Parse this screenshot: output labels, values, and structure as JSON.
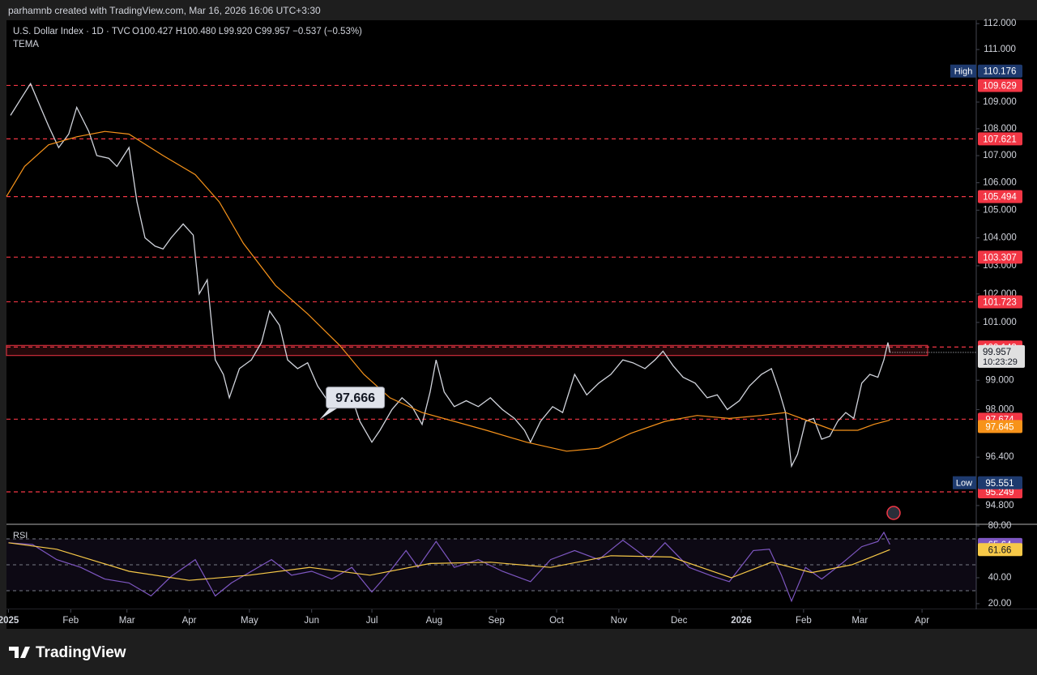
{
  "header": {
    "attribution": "parhamnb created with TradingView.com, Mar 16, 2026 16:06 UTC+3:30",
    "brand": "TradingView"
  },
  "chart_data": [
    {
      "type": "line",
      "title": "U.S. Dollar Index · 1D · TVC",
      "ohlc": "O100.427 H100.480 L99.920 C99.957 −0.537 (−0.53%)",
      "log_scale": true,
      "xlim": [
        -1,
        482
      ],
      "ylim": [
        94.24,
        112.13
      ],
      "yticks": [
        {
          "value": 112,
          "label": "112.000"
        },
        {
          "value": 111,
          "label": "111.000"
        },
        {
          "value": 109,
          "label": "109.000"
        },
        {
          "value": 108,
          "label": "108.000"
        },
        {
          "value": 107,
          "label": "107.000"
        },
        {
          "value": 106,
          "label": "106.000"
        },
        {
          "value": 105,
          "label": "105.000"
        },
        {
          "value": 104,
          "label": "104.000"
        },
        {
          "value": 103,
          "label": "103.000"
        },
        {
          "value": 102,
          "label": "102.000"
        },
        {
          "value": 101,
          "label": "101.000"
        },
        {
          "value": 99,
          "label": "99.000"
        },
        {
          "value": 98,
          "label": "98.000"
        },
        {
          "value": 96.4,
          "label": "96.400"
        },
        {
          "value": 94.8,
          "label": "94.800"
        }
      ],
      "series": [
        {
          "color": "#d1d4dc",
          "x": [
            1,
            6,
            11,
            16,
            20,
            25,
            30,
            34,
            40,
            44,
            50,
            54,
            60,
            64,
            68,
            73,
            77,
            81,
            87,
            92,
            95,
            99,
            103,
            107,
            110,
            115,
            121,
            126,
            130,
            135,
            139,
            144,
            149,
            154,
            159,
            165,
            171,
            175,
            181,
            185,
            191,
            196,
            201,
            206,
            210,
            213,
            217,
            222,
            228,
            234,
            240,
            246,
            252,
            257,
            260,
            265,
            271,
            276,
            282,
            288,
            294,
            300,
            306,
            311,
            317,
            322,
            326,
            331,
            336,
            342,
            348,
            353,
            358,
            364,
            369,
            375,
            380,
            384,
            387,
            390,
            393,
            397,
            401,
            405,
            409,
            413,
            417,
            421,
            425,
            429,
            433,
            436,
            438,
            439
          ],
          "values": [
            108.5,
            109.1,
            109.7,
            108.8,
            108.1,
            107.3,
            107.8,
            108.8,
            107.9,
            107.0,
            106.9,
            106.6,
            107.3,
            105.3,
            104.0,
            103.7,
            103.6,
            104.0,
            104.5,
            104.1,
            102.0,
            102.5,
            99.7,
            99.2,
            98.4,
            99.4,
            99.7,
            100.3,
            101.4,
            100.9,
            99.7,
            99.4,
            99.6,
            98.8,
            98.3,
            98.5,
            98.4,
            97.6,
            96.9,
            97.3,
            98.0,
            98.4,
            98.1,
            97.5,
            98.6,
            99.7,
            98.6,
            98.1,
            98.3,
            98.1,
            98.4,
            98.0,
            97.7,
            97.3,
            96.9,
            97.6,
            98.1,
            97.9,
            99.2,
            98.5,
            98.9,
            99.2,
            99.7,
            99.6,
            99.4,
            99.7,
            100.0,
            99.5,
            99.1,
            98.9,
            98.4,
            98.5,
            98.0,
            98.3,
            98.8,
            99.2,
            99.4,
            98.6,
            97.9,
            96.1,
            96.5,
            97.6,
            97.7,
            97.0,
            97.1,
            97.6,
            97.9,
            97.7,
            98.9,
            99.2,
            99.1,
            99.7,
            100.3,
            99.957
          ]
        },
        {
          "name": "TEMA",
          "color": "#f7931a",
          "x": [
            -1,
            8,
            20,
            34,
            48,
            60,
            77,
            93,
            105,
            117,
            133,
            149,
            165,
            177,
            190,
            206,
            222,
            238,
            258,
            278,
            294,
            310,
            327,
            343,
            359,
            375,
            387,
            399,
            411,
            423,
            431,
            439
          ],
          "values": [
            105.5,
            106.6,
            107.4,
            107.7,
            107.9,
            107.8,
            107.0,
            106.3,
            105.3,
            103.8,
            102.3,
            101.3,
            100.2,
            99.2,
            98.4,
            97.9,
            97.6,
            97.3,
            96.9,
            96.6,
            96.7,
            97.2,
            97.6,
            97.8,
            97.7,
            97.8,
            97.9,
            97.6,
            97.3,
            97.3,
            97.5,
            97.645
          ]
        }
      ],
      "levels": [
        109.629,
        107.621,
        105.494,
        103.307,
        101.723,
        100.143,
        97.674,
        95.249
      ],
      "level_color": "#f23645",
      "zone": [
        99.85,
        100.2
      ],
      "high": {
        "label": "High",
        "value": 110.176
      },
      "low": {
        "label": "Low",
        "value": 95.551
      },
      "last": {
        "value": 99.957,
        "countdown": "10:23:29"
      },
      "annotation": {
        "value": 97.666,
        "x": 155
      }
    },
    {
      "type": "line",
      "title": "RSI",
      "xlim": [
        -1,
        482
      ],
      "ylim": [
        15.6,
        80.6
      ],
      "yticks": [
        {
          "value": 80,
          "label": "80.00"
        },
        {
          "value": 40,
          "label": "40.00"
        },
        {
          "value": 20,
          "label": "20.00"
        }
      ],
      "levels": [
        70,
        50,
        30
      ],
      "xticks": [
        {
          "value": 0,
          "label": "2025"
        },
        {
          "value": 31,
          "label": "Feb"
        },
        {
          "value": 59,
          "label": "Mar"
        },
        {
          "value": 90,
          "label": "Apr"
        },
        {
          "value": 120,
          "label": "May"
        },
        {
          "value": 151,
          "label": "Jun"
        },
        {
          "value": 181,
          "label": "Jul"
        },
        {
          "value": 212,
          "label": "Aug"
        },
        {
          "value": 243,
          "label": "Sep"
        },
        {
          "value": 273,
          "label": "Oct"
        },
        {
          "value": 304,
          "label": "Nov"
        },
        {
          "value": 334,
          "label": "Dec"
        },
        {
          "value": 365,
          "label": "2026"
        },
        {
          "value": 396,
          "label": "Feb"
        },
        {
          "value": 424,
          "label": "Mar"
        },
        {
          "value": 455,
          "label": "Apr"
        }
      ],
      "series": [
        {
          "color": "#7e57c2",
          "x": [
            0,
            12,
            24,
            36,
            48,
            60,
            71,
            81,
            93,
            103,
            111,
            121,
            131,
            141,
            151,
            161,
            171,
            181,
            190,
            198,
            204,
            213,
            222,
            234,
            246,
            260,
            270,
            282,
            294,
            306,
            319,
            327,
            339,
            351,
            359,
            371,
            379,
            385,
            390,
            397,
            405,
            415,
            425,
            433,
            436,
            439
          ],
          "values": [
            67,
            65.6,
            54,
            48,
            39,
            36,
            26,
            41,
            54,
            26,
            36,
            45,
            54,
            42,
            45,
            39,
            48,
            29,
            45,
            61,
            48,
            68,
            48,
            54,
            45,
            37,
            54,
            61,
            54,
            69,
            54,
            67,
            48,
            41,
            37,
            61,
            62,
            42,
            22,
            48,
            39,
            51,
            64,
            68,
            75,
            65.64
          ]
        },
        {
          "color": "#f7c948",
          "x": [
            0,
            24,
            60,
            90,
            120,
            150,
            180,
            210,
            240,
            270,
            300,
            330,
            360,
            380,
            400,
            420,
            439
          ],
          "values": [
            67,
            62,
            45,
            38,
            42,
            48,
            42,
            51,
            52,
            48,
            57,
            56,
            40,
            52,
            44,
            50,
            61.66
          ]
        }
      ]
    }
  ]
}
